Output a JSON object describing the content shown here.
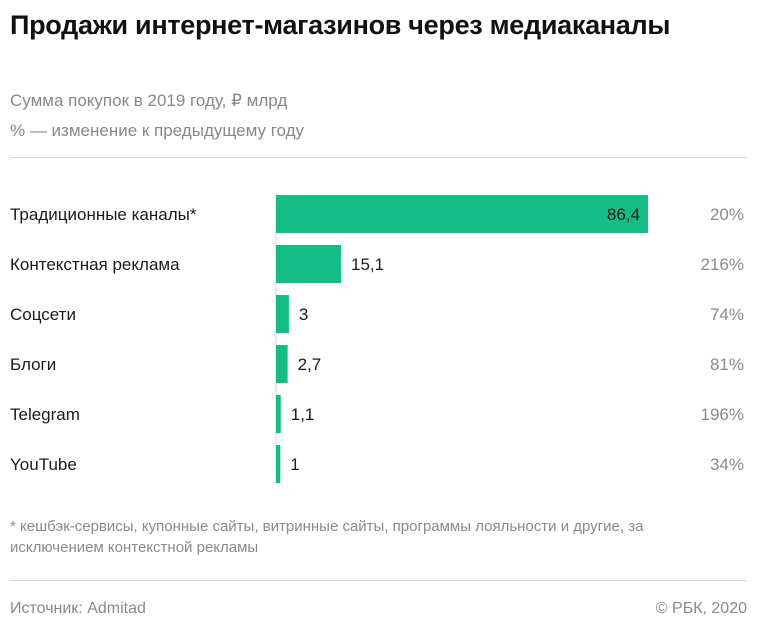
{
  "colors": {
    "bar": "#13bd85",
    "axis": "#d0d0d0",
    "percent_text": "#8a8a8a"
  },
  "chart_data": {
    "type": "bar",
    "orientation": "horizontal",
    "title": "Продажи интернет-магазинов через медиаканалы",
    "subtitle": "Сумма покупок в 2019 году, ₽ млрд",
    "subtitle2": "% — изменение к предыдущему году",
    "categories": [
      "Традиционные каналы*",
      "Контекстная реклама",
      "Соцсети",
      "Блоги",
      "Telegram",
      "YouTube"
    ],
    "values": [
      86.4,
      15.1,
      3,
      2.7,
      1.1,
      1
    ],
    "value_labels": [
      "86,4",
      "15,1",
      "3",
      "2,7",
      "1,1",
      "1"
    ],
    "change_labels": [
      "20%",
      "216%",
      "74%",
      "81%",
      "196%",
      "34%"
    ],
    "xlim": [
      0,
      86.4
    ],
    "grid": false,
    "legend": "none"
  },
  "footnote": "* кешбэк-сервисы, купонные сайты, витринные сайты, программы лояльности и другие, за исключением контекстной рекламы",
  "source": "Источник: Admitad",
  "copyright": "© РБК, 2020"
}
